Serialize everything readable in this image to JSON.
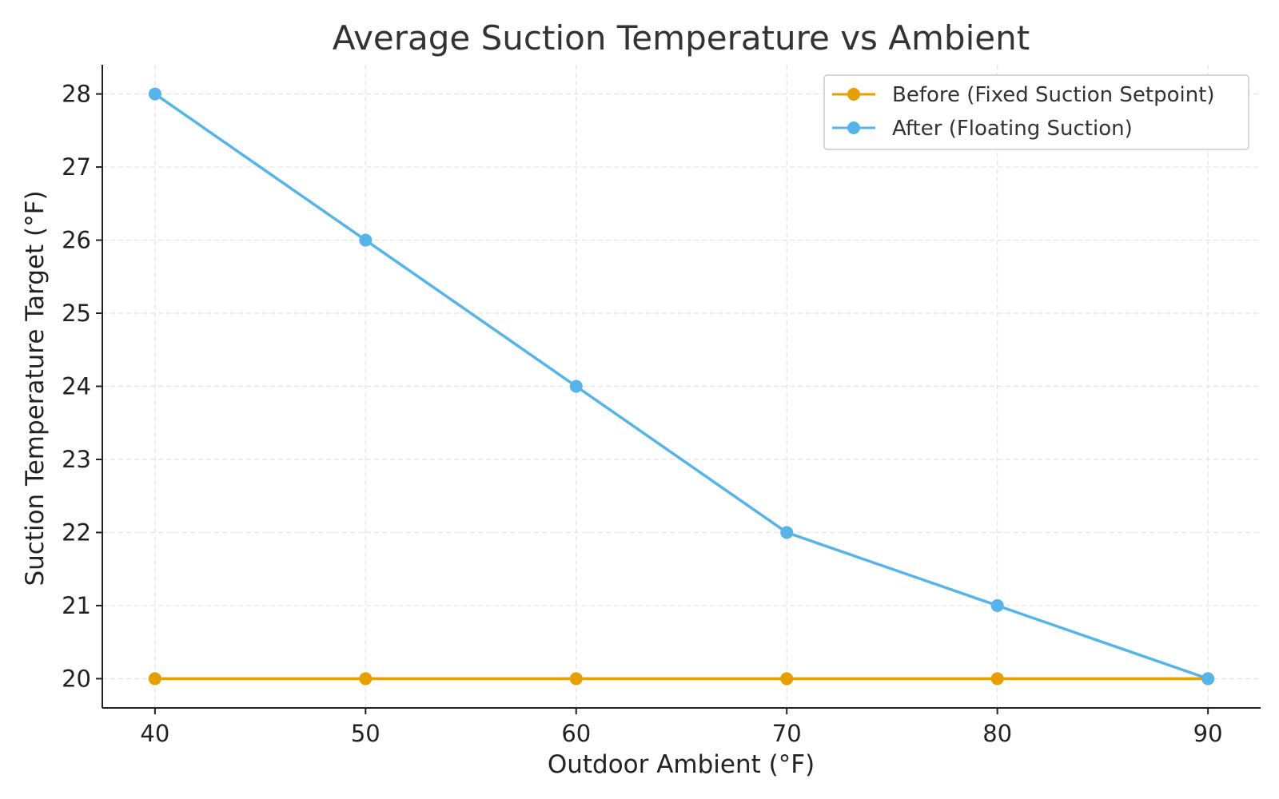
{
  "chart_data": {
    "type": "line",
    "title": "Average Suction Temperature vs Ambient",
    "xlabel": "Outdoor Ambient (°F)",
    "ylabel": "Suction Temperature Target (°F)",
    "x": [
      40,
      50,
      60,
      70,
      80,
      90
    ],
    "xlim": [
      37.5,
      92.5
    ],
    "ylim": [
      19.6,
      28.4
    ],
    "xticks": [
      40,
      50,
      60,
      70,
      80,
      90
    ],
    "yticks": [
      20,
      21,
      22,
      23,
      24,
      25,
      26,
      27,
      28
    ],
    "grid": true,
    "legend_position": "top-right",
    "series": [
      {
        "name": "Before (Fixed Suction Setpoint)",
        "color": "#E69F00",
        "marker": "circle",
        "values": [
          20,
          20,
          20,
          20,
          20,
          20
        ]
      },
      {
        "name": "After (Floating Suction)",
        "color": "#56B4E9",
        "marker": "circle",
        "values": [
          28,
          26,
          24,
          22,
          21,
          20
        ]
      }
    ]
  }
}
